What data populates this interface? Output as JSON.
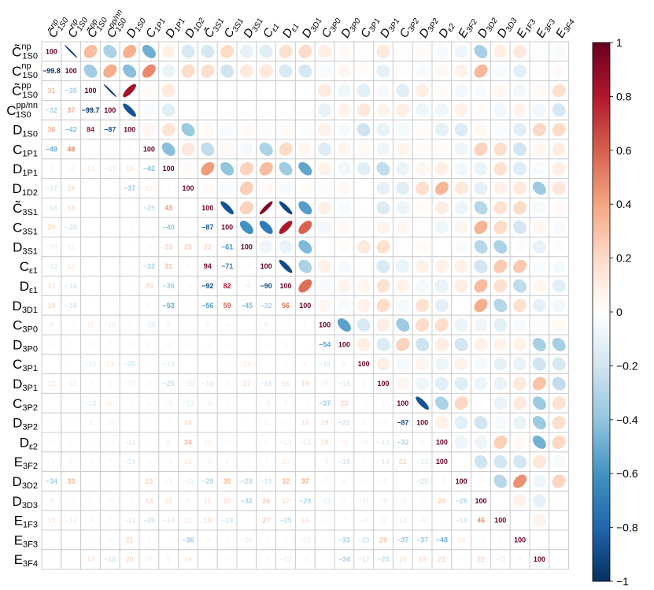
{
  "chart_data": {
    "type": "heatmap",
    "title": "",
    "row_labels": [
      {
        "base": "C̃",
        "sub": "1S0",
        "sup": "np"
      },
      {
        "base": "C",
        "sub": "1S0",
        "sup": "np"
      },
      {
        "base": "C̃",
        "sub": "1S0",
        "sup": "pp"
      },
      {
        "base": "C",
        "sub": "1S0",
        "sup": "pp/nn"
      },
      {
        "base": "D",
        "sub": "1S0",
        "sup": ""
      },
      {
        "base": "C",
        "sub": "1P1",
        "sup": ""
      },
      {
        "base": "D",
        "sub": "1P1",
        "sup": ""
      },
      {
        "base": "D",
        "sub": "1D2",
        "sup": ""
      },
      {
        "base": "C̃",
        "sub": "3S1",
        "sup": ""
      },
      {
        "base": "C",
        "sub": "3S1",
        "sup": ""
      },
      {
        "base": "D",
        "sub": "3S1",
        "sup": ""
      },
      {
        "base": "C",
        "sub": "ε1",
        "sup": ""
      },
      {
        "base": "D",
        "sub": "ε1",
        "sup": ""
      },
      {
        "base": "D",
        "sub": "3D1",
        "sup": ""
      },
      {
        "base": "C",
        "sub": "3P0",
        "sup": ""
      },
      {
        "base": "D",
        "sub": "3P0",
        "sup": ""
      },
      {
        "base": "C",
        "sub": "3P1",
        "sup": ""
      },
      {
        "base": "D",
        "sub": "3P1",
        "sup": ""
      },
      {
        "base": "C",
        "sub": "3P2",
        "sup": ""
      },
      {
        "base": "D",
        "sub": "3P2",
        "sup": ""
      },
      {
        "base": "D",
        "sub": "ε2",
        "sup": ""
      },
      {
        "base": "E",
        "sub": "3F2",
        "sup": ""
      },
      {
        "base": "D",
        "sub": "3D2",
        "sup": ""
      },
      {
        "base": "D",
        "sub": "3D3",
        "sup": ""
      },
      {
        "base": "E",
        "sub": "1F3",
        "sup": ""
      },
      {
        "base": "E",
        "sub": "3F3",
        "sup": ""
      },
      {
        "base": "E",
        "sub": "3F4",
        "sup": ""
      }
    ],
    "lower_values": [
      [
        100
      ],
      [
        -99.8,
        100
      ],
      [
        31,
        -35,
        100
      ],
      [
        -32,
        37,
        -99.7,
        100
      ],
      [
        36,
        -42,
        84,
        -87,
        100
      ],
      [
        -49,
        48,
        3,
        -3,
        5,
        100
      ],
      [
        8,
        -9,
        12,
        -13,
        15,
        -42,
        100
      ],
      [
        -17,
        19,
        1,
        -1,
        -37,
        13,
        3,
        100
      ],
      [
        -18,
        18,
        0,
        0,
        3,
        -25,
        43,
        2,
        100
      ],
      [
        20,
        -20,
        0,
        0,
        -3,
        4,
        -40,
        -3,
        -87,
        100
      ],
      [
        -10,
        11,
        0,
        0,
        3,
        -5,
        23,
        25,
        23,
        -61,
        100
      ],
      [
        -13,
        13,
        0,
        0,
        -2,
        -32,
        31,
        4,
        94,
        -71,
        -7,
        100
      ],
      [
        17,
        -16,
        0,
        0,
        3,
        20,
        -36,
        -4,
        -92,
        82,
        -9,
        -90,
        100
      ],
      [
        19,
        -18,
        0,
        0,
        -2,
        5,
        -53,
        2,
        -56,
        59,
        -45,
        -32,
        56,
        100
      ],
      [
        9,
        -3,
        11,
        -10,
        7,
        -15,
        8,
        -2,
        9,
        -6,
        0,
        8,
        -4,
        5,
        100
      ],
      [
        4,
        5,
        -7,
        7,
        -5,
        6,
        -6,
        4,
        -4,
        4,
        2,
        -4,
        6,
        -3,
        -54,
        100
      ],
      [
        1,
        2,
        -12,
        13,
        -20,
        4,
        -13,
        0,
        1,
        -2,
        11,
        1,
        5,
        8,
        -16,
        9,
        100
      ],
      [
        12,
        -11,
        -5,
        6,
        -10,
        -7,
        -25,
        -11,
        -15,
        6,
        17,
        -16,
        16,
        19,
        10,
        -15,
        9,
        100
      ],
      [
        -1,
        1,
        -13,
        10,
        -5,
        6,
        -9,
        -13,
        -8,
        5,
        -1,
        -9,
        7,
        -5,
        -37,
        23,
        -5,
        5,
        100
      ],
      [
        3,
        -3,
        9,
        -8,
        2,
        2,
        5,
        18,
        2,
        1,
        3,
        8,
        -5,
        16,
        19,
        -21,
        6,
        -7,
        -87,
        100
      ],
      [
        -4,
        4,
        3,
        -7,
        -11,
        2,
        9,
        34,
        10,
        -7,
        0,
        8,
        -10,
        -12,
        19,
        10,
        -8,
        -13,
        -32,
        8,
        100
      ],
      [
        -7,
        8,
        -6,
        7,
        -15,
        -7,
        -6,
        12,
        -8,
        6,
        -3,
        7,
        10,
        0,
        -9,
        -19,
        7,
        -14,
        21,
        -12,
        100
      ],
      [
        -34,
        33,
        -3,
        2,
        4,
        23,
        -9,
        -11,
        -29,
        35,
        -28,
        -19,
        32,
        37,
        -7,
        8,
        -5,
        -8,
        0,
        -20,
        -8,
        100
      ],
      [
        9,
        -4,
        5,
        -6,
        -3,
        18,
        16,
        8,
        16,
        20,
        -32,
        26,
        17,
        -29,
        -12,
        7,
        -11,
        -9,
        -9,
        -5,
        24,
        -28,
        100
      ],
      [
        13,
        -12,
        -6,
        7,
        -13,
        -20,
        -14,
        12,
        19,
        -19,
        -2,
        27,
        -25,
        16,
        -4,
        7,
        -9,
        12,
        12,
        -9,
        4,
        -19,
        46,
        100
      ],
      [
        -1,
        1,
        4,
        -6,
        21,
        5,
        -3,
        -36,
        -4,
        5,
        -10,
        -3,
        5,
        -11,
        -2,
        -33,
        -20,
        29,
        -37,
        -37,
        -48,
        14,
        -7,
        7,
        100
      ],
      [
        -3,
        3,
        17,
        -18,
        20,
        10,
        9,
        14,
        4,
        -4,
        -2,
        -5,
        -12,
        -6,
        4,
        -34,
        -17,
        -25,
        16,
        18,
        21,
        -4,
        22,
        -11,
        6,
        100
      ]
    ],
    "upper_values": [
      [
        100,
        -99.8,
        31,
        -32,
        36,
        -49,
        8,
        -17,
        -18,
        20,
        -10,
        -13,
        17,
        19,
        9,
        4,
        1,
        12,
        -1,
        3,
        -4,
        -7,
        -34,
        9,
        13,
        -1,
        -3
      ],
      [
        100,
        -35,
        37,
        -42,
        48,
        -9,
        19,
        18,
        -20,
        11,
        13,
        -16,
        -18,
        -3,
        5,
        2,
        -11,
        1,
        -3,
        4,
        8,
        33,
        -4,
        -12,
        1,
        3
      ],
      [
        100,
        -99.7,
        84,
        3,
        12,
        1,
        0,
        0,
        0,
        0,
        0,
        0,
        11,
        -7,
        -12,
        -5,
        -13,
        9,
        3,
        -6,
        -3,
        5,
        -6,
        4,
        17
      ],
      [
        100,
        -87,
        -3,
        -13,
        -1,
        0,
        0,
        0,
        0,
        0,
        0,
        -10,
        7,
        13,
        6,
        10,
        -8,
        -7,
        7,
        2,
        -6,
        7,
        -6,
        -18
      ],
      [
        100,
        5,
        15,
        -37,
        3,
        -3,
        3,
        -2,
        3,
        -2,
        7,
        -5,
        -20,
        -10,
        -5,
        2,
        -11,
        -15,
        4,
        -3,
        -13,
        21,
        20
      ],
      [
        100,
        -42,
        13,
        -25,
        4,
        -5,
        -32,
        20,
        5,
        -15,
        6,
        4,
        -7,
        6,
        2,
        2,
        -7,
        23,
        18,
        -20,
        5,
        10
      ],
      [
        100,
        3,
        43,
        -40,
        23,
        31,
        -36,
        -53,
        8,
        -6,
        -13,
        -25,
        -9,
        5,
        9,
        -6,
        -9,
        16,
        -14,
        -3,
        9
      ],
      [
        100,
        2,
        -3,
        25,
        4,
        -4,
        2,
        -2,
        4,
        0,
        -11,
        -13,
        18,
        34,
        12,
        -11,
        8,
        12,
        -36,
        14
      ],
      [
        100,
        -87,
        23,
        94,
        -92,
        -56,
        9,
        -4,
        1,
        -15,
        -8,
        2,
        10,
        -8,
        -29,
        16,
        19,
        -4,
        4
      ],
      [
        100,
        -61,
        -71,
        82,
        59,
        -6,
        4,
        -2,
        6,
        5,
        1,
        -7,
        6,
        35,
        20,
        -19,
        5,
        -4
      ],
      [
        100,
        -7,
        -9,
        -45,
        0,
        2,
        11,
        17,
        -1,
        3,
        0,
        -3,
        -28,
        -32,
        -2,
        -10,
        -2
      ],
      [
        100,
        -90,
        -32,
        8,
        -4,
        1,
        -16,
        -9,
        8,
        8,
        7,
        -19,
        26,
        27,
        -3,
        -5
      ],
      [
        100,
        56,
        -4,
        6,
        5,
        16,
        7,
        -5,
        -10,
        10,
        32,
        17,
        -25,
        5,
        -12
      ],
      [
        100,
        5,
        -3,
        8,
        19,
        -5,
        16,
        -12,
        0,
        37,
        -29,
        16,
        -11,
        -6
      ],
      [
        100,
        -54,
        -16,
        10,
        -37,
        19,
        19,
        -9,
        -7,
        -12,
        -4,
        -2,
        4
      ],
      [
        100,
        9,
        -15,
        23,
        -21,
        10,
        -19,
        8,
        7,
        7,
        -33,
        -34
      ],
      [
        100,
        9,
        -5,
        6,
        -8,
        7,
        -5,
        -11,
        -9,
        -20,
        -17
      ],
      [
        100,
        5,
        -7,
        -13,
        -14,
        -8,
        -9,
        12,
        29,
        -25
      ],
      [
        100,
        -87,
        -32,
        21,
        0,
        -9,
        12,
        -37,
        16
      ],
      [
        100,
        8,
        -12,
        -20,
        -5,
        -9,
        -37,
        18
      ],
      [
        100,
        -8,
        -8,
        24,
        4,
        -48,
        21
      ],
      [
        100,
        -20,
        -19,
        -19,
        14,
        -4
      ],
      [
        100,
        -28,
        46,
        -7,
        22
      ],
      [
        100,
        7,
        -11
      ],
      [
        100,
        6
      ],
      [
        100
      ]
    ],
    "colorbar": {
      "min": -1,
      "max": 1,
      "ticks": [
        "1",
        "0.8",
        "0.6",
        "0.4",
        "0.2",
        "0",
        "−0.2",
        "−0.4",
        "−0.6",
        "−0.8",
        "−1"
      ]
    },
    "lower_style": "number",
    "upper_style": "ellipse",
    "grid": true
  }
}
